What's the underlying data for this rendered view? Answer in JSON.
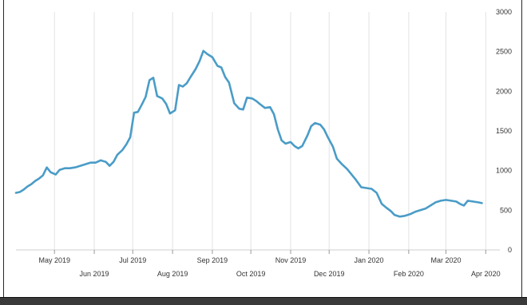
{
  "chart_data": {
    "type": "line",
    "title": "",
    "xlabel": "",
    "ylabel": "",
    "ylim": [
      0,
      3000
    ],
    "y_ticks": [
      "3000",
      "2500",
      "2000",
      "1500",
      "1000",
      "500",
      "0"
    ],
    "y_tick_values": [
      3000,
      2500,
      2000,
      1500,
      1000,
      500,
      0
    ],
    "y_axis_side": "right",
    "grid": "vertical",
    "xlim": [
      "2019-04-01",
      "2020-04-12"
    ],
    "x_ticks_top": [
      {
        "label": "May 2019",
        "date": "2019-05-01"
      },
      {
        "label": "Jul 2019",
        "date": "2019-07-01"
      },
      {
        "label": "Sep 2019",
        "date": "2019-09-01"
      },
      {
        "label": "Nov 2019",
        "date": "2019-11-01"
      },
      {
        "label": "Jan 2020",
        "date": "2020-01-01"
      },
      {
        "label": "Mar 2020",
        "date": "2020-03-01"
      }
    ],
    "x_ticks_bottom": [
      {
        "label": "Jun 2019",
        "date": "2019-06-01"
      },
      {
        "label": "Aug 2019",
        "date": "2019-08-01"
      },
      {
        "label": "Oct 2019",
        "date": "2019-10-01"
      },
      {
        "label": "Dec 2019",
        "date": "2019-12-01"
      },
      {
        "label": "Feb 2020",
        "date": "2020-02-01"
      },
      {
        "label": "Apr 2020",
        "date": "2020-04-01"
      }
    ],
    "line_color": "#4a9cc7",
    "series": [
      {
        "name": "",
        "points": [
          [
            "2019-04-01",
            720
          ],
          [
            "2019-04-04",
            730
          ],
          [
            "2019-04-07",
            760
          ],
          [
            "2019-04-10",
            800
          ],
          [
            "2019-04-13",
            830
          ],
          [
            "2019-04-16",
            870
          ],
          [
            "2019-04-19",
            900
          ],
          [
            "2019-04-22",
            940
          ],
          [
            "2019-04-25",
            1040
          ],
          [
            "2019-04-28",
            980
          ],
          [
            "2019-05-02",
            950
          ],
          [
            "2019-05-05",
            1010
          ],
          [
            "2019-05-09",
            1030
          ],
          [
            "2019-05-13",
            1030
          ],
          [
            "2019-05-17",
            1040
          ],
          [
            "2019-05-21",
            1060
          ],
          [
            "2019-05-25",
            1080
          ],
          [
            "2019-05-29",
            1100
          ],
          [
            "2019-06-02",
            1100
          ],
          [
            "2019-06-06",
            1130
          ],
          [
            "2019-06-10",
            1110
          ],
          [
            "2019-06-13",
            1060
          ],
          [
            "2019-06-16",
            1110
          ],
          [
            "2019-06-19",
            1200
          ],
          [
            "2019-06-23",
            1260
          ],
          [
            "2019-06-26",
            1330
          ],
          [
            "2019-06-29",
            1420
          ],
          [
            "2019-07-02",
            1730
          ],
          [
            "2019-07-05",
            1740
          ],
          [
            "2019-07-08",
            1830
          ],
          [
            "2019-07-11",
            1930
          ],
          [
            "2019-07-14",
            2140
          ],
          [
            "2019-07-17",
            2170
          ],
          [
            "2019-07-20",
            1940
          ],
          [
            "2019-07-24",
            1910
          ],
          [
            "2019-07-27",
            1840
          ],
          [
            "2019-07-30",
            1720
          ],
          [
            "2019-08-03",
            1760
          ],
          [
            "2019-08-06",
            2080
          ],
          [
            "2019-08-09",
            2060
          ],
          [
            "2019-08-12",
            2100
          ],
          [
            "2019-08-15",
            2180
          ],
          [
            "2019-08-19",
            2280
          ],
          [
            "2019-08-22",
            2380
          ],
          [
            "2019-08-25",
            2510
          ],
          [
            "2019-08-28",
            2470
          ],
          [
            "2019-09-01",
            2430
          ],
          [
            "2019-09-05",
            2320
          ],
          [
            "2019-09-08",
            2300
          ],
          [
            "2019-09-11",
            2180
          ],
          [
            "2019-09-14",
            2110
          ],
          [
            "2019-09-18",
            1850
          ],
          [
            "2019-09-22",
            1780
          ],
          [
            "2019-09-25",
            1770
          ],
          [
            "2019-09-28",
            1920
          ],
          [
            "2019-10-02",
            1910
          ],
          [
            "2019-10-05",
            1880
          ],
          [
            "2019-10-08",
            1840
          ],
          [
            "2019-10-12",
            1790
          ],
          [
            "2019-10-16",
            1800
          ],
          [
            "2019-10-19",
            1710
          ],
          [
            "2019-10-22",
            1520
          ],
          [
            "2019-10-25",
            1380
          ],
          [
            "2019-10-28",
            1340
          ],
          [
            "2019-11-01",
            1360
          ],
          [
            "2019-11-04",
            1310
          ],
          [
            "2019-11-07",
            1280
          ],
          [
            "2019-11-10",
            1310
          ],
          [
            "2019-11-14",
            1440
          ],
          [
            "2019-11-17",
            1560
          ],
          [
            "2019-11-20",
            1600
          ],
          [
            "2019-11-24",
            1580
          ],
          [
            "2019-11-27",
            1520
          ],
          [
            "2019-11-30",
            1420
          ],
          [
            "2019-12-04",
            1300
          ],
          [
            "2019-12-07",
            1150
          ],
          [
            "2019-12-11",
            1080
          ],
          [
            "2019-12-15",
            1020
          ],
          [
            "2019-12-18",
            960
          ],
          [
            "2019-12-22",
            880
          ],
          [
            "2019-12-26",
            790
          ],
          [
            "2019-12-30",
            780
          ],
          [
            "2020-01-03",
            770
          ],
          [
            "2020-01-07",
            720
          ],
          [
            "2020-01-11",
            580
          ],
          [
            "2020-01-14",
            540
          ],
          [
            "2020-01-18",
            490
          ],
          [
            "2020-01-21",
            440
          ],
          [
            "2020-01-25",
            420
          ],
          [
            "2020-01-29",
            430
          ],
          [
            "2020-02-02",
            450
          ],
          [
            "2020-02-06",
            480
          ],
          [
            "2020-02-10",
            500
          ],
          [
            "2020-02-14",
            520
          ],
          [
            "2020-02-18",
            560
          ],
          [
            "2020-02-22",
            600
          ],
          [
            "2020-02-26",
            620
          ],
          [
            "2020-03-01",
            630
          ],
          [
            "2020-03-05",
            620
          ],
          [
            "2020-03-09",
            610
          ],
          [
            "2020-03-12",
            580
          ],
          [
            "2020-03-15",
            560
          ],
          [
            "2020-03-18",
            620
          ],
          [
            "2020-03-22",
            610
          ],
          [
            "2020-03-26",
            600
          ],
          [
            "2020-03-29",
            590
          ]
        ]
      }
    ]
  }
}
